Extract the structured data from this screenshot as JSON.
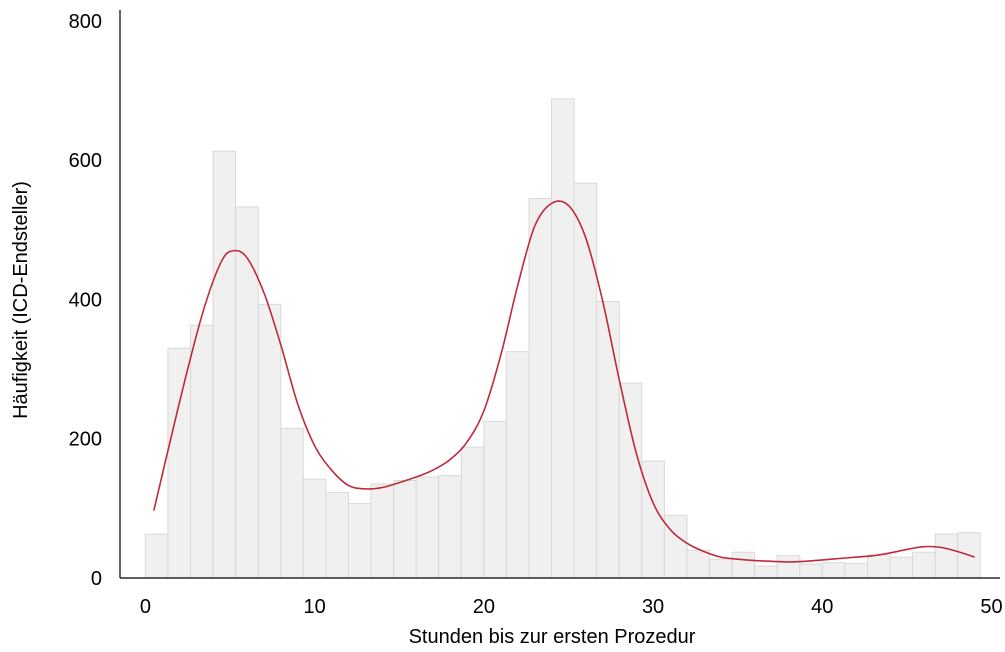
{
  "chart_data": {
    "type": "bar",
    "subtype": "histogram-with-density",
    "xlabel": "Stunden bis zur ersten Prozedur",
    "ylabel": "Häufigkeit (ICD-Endsteller)",
    "xlim": [
      -1.5,
      50.5
    ],
    "ylim": [
      0,
      810
    ],
    "x_ticks": [
      0,
      10,
      20,
      30,
      40,
      50
    ],
    "y_ticks": [
      0,
      200,
      400,
      600,
      800
    ],
    "grid": false,
    "bin_width": 1.33,
    "bins": [
      {
        "x0": 0.0,
        "x1": 1.33,
        "count": 63
      },
      {
        "x0": 1.33,
        "x1": 2.67,
        "count": 330
      },
      {
        "x0": 2.67,
        "x1": 4.0,
        "count": 363
      },
      {
        "x0": 4.0,
        "x1": 5.33,
        "count": 613
      },
      {
        "x0": 5.33,
        "x1": 6.67,
        "count": 533
      },
      {
        "x0": 6.67,
        "x1": 8.0,
        "count": 393
      },
      {
        "x0": 8.0,
        "x1": 9.33,
        "count": 215
      },
      {
        "x0": 9.33,
        "x1": 10.67,
        "count": 142
      },
      {
        "x0": 10.67,
        "x1": 12.0,
        "count": 123
      },
      {
        "x0": 12.0,
        "x1": 13.33,
        "count": 107
      },
      {
        "x0": 13.33,
        "x1": 14.67,
        "count": 135
      },
      {
        "x0": 14.67,
        "x1": 16.0,
        "count": 140
      },
      {
        "x0": 16.0,
        "x1": 17.33,
        "count": 145
      },
      {
        "x0": 17.33,
        "x1": 18.67,
        "count": 147
      },
      {
        "x0": 18.67,
        "x1": 20.0,
        "count": 188
      },
      {
        "x0": 20.0,
        "x1": 21.33,
        "count": 225
      },
      {
        "x0": 21.33,
        "x1": 22.67,
        "count": 325
      },
      {
        "x0": 22.67,
        "x1": 24.0,
        "count": 545
      },
      {
        "x0": 24.0,
        "x1": 25.33,
        "count": 688
      },
      {
        "x0": 25.33,
        "x1": 26.67,
        "count": 567
      },
      {
        "x0": 26.67,
        "x1": 28.0,
        "count": 397
      },
      {
        "x0": 28.0,
        "x1": 29.33,
        "count": 280
      },
      {
        "x0": 29.33,
        "x1": 30.67,
        "count": 168
      },
      {
        "x0": 30.67,
        "x1": 32.0,
        "count": 90
      },
      {
        "x0": 32.0,
        "x1": 33.33,
        "count": 40
      },
      {
        "x0": 33.33,
        "x1": 34.67,
        "count": 27
      },
      {
        "x0": 34.67,
        "x1": 36.0,
        "count": 37
      },
      {
        "x0": 36.0,
        "x1": 37.33,
        "count": 17
      },
      {
        "x0": 37.33,
        "x1": 38.67,
        "count": 32
      },
      {
        "x0": 38.67,
        "x1": 40.0,
        "count": 20
      },
      {
        "x0": 40.0,
        "x1": 41.33,
        "count": 22
      },
      {
        "x0": 41.33,
        "x1": 42.67,
        "count": 21
      },
      {
        "x0": 42.67,
        "x1": 44.0,
        "count": 33
      },
      {
        "x0": 44.0,
        "x1": 45.33,
        "count": 30
      },
      {
        "x0": 45.33,
        "x1": 46.67,
        "count": 37
      },
      {
        "x0": 46.67,
        "x1": 48.0,
        "count": 63
      },
      {
        "x0": 48.0,
        "x1": 49.33,
        "count": 65
      }
    ],
    "density_curve": {
      "color": "#c0293b",
      "x": [
        0.5,
        1.5,
        2.5,
        3.5,
        4.5,
        5.2,
        6.0,
        7.0,
        8.0,
        9.0,
        10.0,
        11.0,
        12.0,
        13.0,
        14.0,
        15.0,
        16.0,
        17.0,
        18.0,
        19.0,
        20.0,
        21.0,
        22.0,
        23.0,
        24.0,
        25.0,
        26.0,
        27.0,
        28.0,
        29.0,
        30.0,
        31.0,
        32.0,
        33.0,
        34.0,
        35.0,
        36.0,
        37.0,
        38.0,
        39.0,
        40.0,
        41.0,
        42.0,
        43.0,
        44.0,
        45.0,
        46.0,
        47.0,
        48.0,
        49.0
      ],
      "y": [
        97,
        200,
        300,
        390,
        455,
        470,
        460,
        410,
        335,
        250,
        190,
        155,
        133,
        128,
        130,
        137,
        145,
        155,
        170,
        195,
        240,
        320,
        420,
        505,
        538,
        535,
        490,
        400,
        285,
        180,
        108,
        70,
        50,
        38,
        30,
        27,
        25,
        24,
        23,
        24,
        26,
        28,
        30,
        32,
        36,
        41,
        45,
        44,
        38,
        30
      ]
    },
    "colors": {
      "bar_fill": "#f0f0f0",
      "bar_stroke": "#d9d9d9",
      "axis": "#000000"
    }
  }
}
